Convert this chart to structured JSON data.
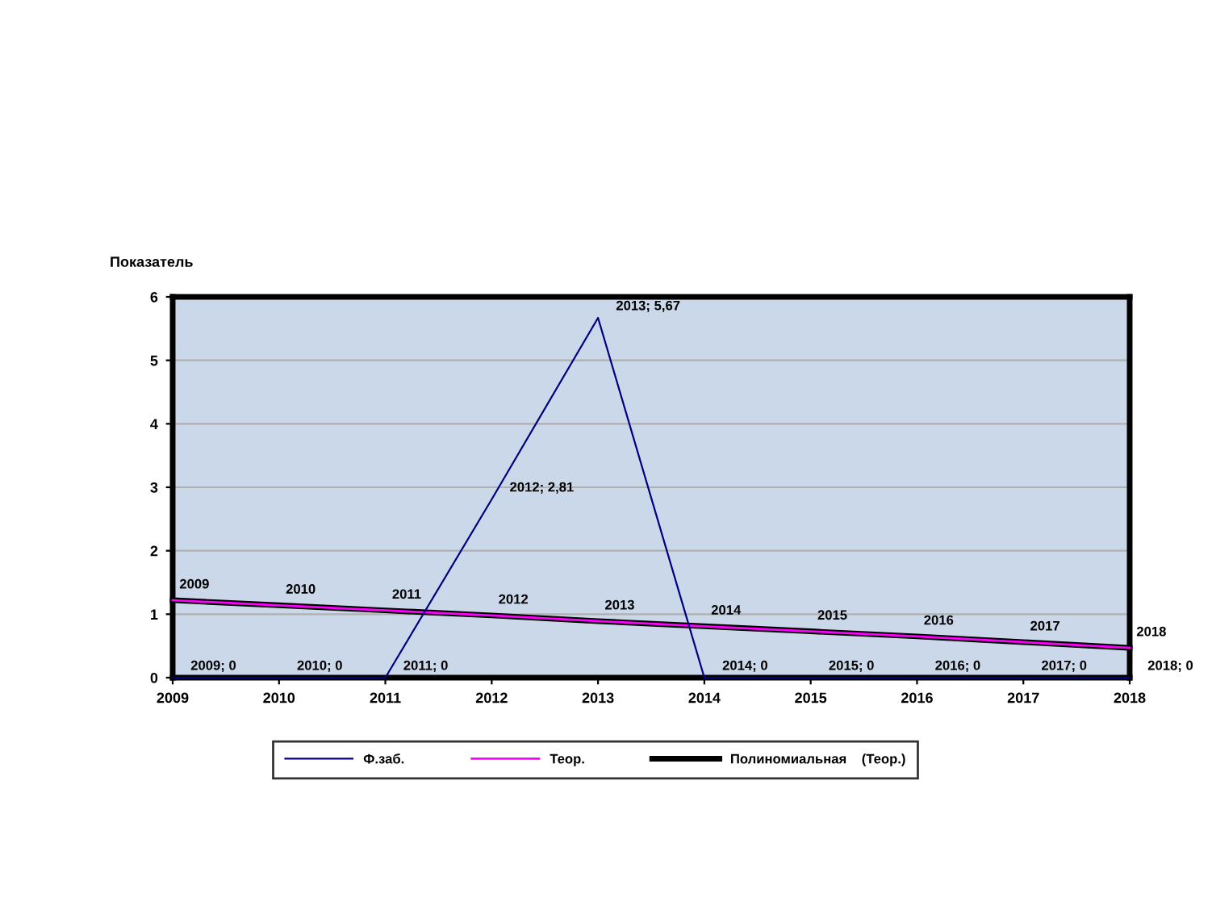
{
  "chart_data": {
    "type": "line",
    "ylabel": "Показатель",
    "x": [
      2009,
      2010,
      2011,
      2012,
      2013,
      2014,
      2015,
      2016,
      2017,
      2018
    ],
    "series": [
      {
        "name": "Ф.заб.",
        "color": "#000080",
        "values": [
          0,
          0,
          0,
          2.81,
          5.67,
          0,
          0,
          0,
          0,
          0
        ],
        "value_labels": [
          "2009; 0",
          "2010; 0",
          "2011; 0",
          "2012; 2,81",
          "2013; 5,67",
          "2014; 0",
          "2015; 0",
          "2016; 0",
          "2017; 0",
          "2018; 0"
        ]
      },
      {
        "name": "Теор.",
        "color": "#ff00ff",
        "values": [
          1.22,
          1.14,
          1.06,
          0.98,
          0.89,
          0.81,
          0.73,
          0.65,
          0.56,
          0.47
        ]
      },
      {
        "name": "Полиномиальная    (Теор.)",
        "color": "#000000",
        "values": [
          1.22,
          1.14,
          1.06,
          0.98,
          0.89,
          0.81,
          0.73,
          0.65,
          0.56,
          0.47
        ]
      }
    ],
    "annotations": [
      {
        "text": "2009",
        "x": 2009,
        "y": 1.22
      },
      {
        "text": "2010",
        "x": 2010,
        "y": 1.14
      },
      {
        "text": "2011",
        "x": 2011,
        "y": 1.06
      },
      {
        "text": "2012",
        "x": 2012,
        "y": 0.98
      },
      {
        "text": "2013",
        "x": 2013,
        "y": 0.89
      },
      {
        "text": "2014",
        "x": 2014,
        "y": 0.81
      },
      {
        "text": "2015",
        "x": 2015,
        "y": 0.73
      },
      {
        "text": "2016",
        "x": 2016,
        "y": 0.65
      },
      {
        "text": "2017",
        "x": 2017,
        "y": 0.56
      },
      {
        "text": "2018",
        "x": 2018,
        "y": 0.47
      }
    ],
    "xlim": [
      2009,
      2018
    ],
    "xticks": [
      2009,
      2010,
      2011,
      2012,
      2013,
      2014,
      2015,
      2016,
      2017,
      2018
    ],
    "ylim": [
      0,
      6
    ],
    "yticks": [
      0,
      1,
      2,
      3,
      4,
      5,
      6
    ],
    "grid": "y",
    "legend": "bottom",
    "marker": "none",
    "line_style": "solid"
  }
}
